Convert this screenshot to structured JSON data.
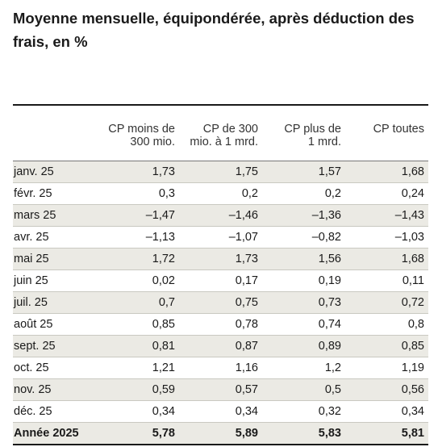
{
  "title": "Moyenne mensuelle, équipondérée, après déduction des frais, en %",
  "table": {
    "headers": [
      "CP moins de\n300 mio.",
      "CP de 300\nmio. à 1 mrd.",
      "CP plus de\n1 mrd.",
      "CP toutes"
    ],
    "rows": [
      {
        "label": "janv. 25",
        "values": [
          "1,73",
          "1,75",
          "1,57",
          "1,68"
        ]
      },
      {
        "label": "févr. 25",
        "values": [
          "0,3",
          "0,2",
          "0,2",
          "0,24"
        ]
      },
      {
        "label": "mars 25",
        "values": [
          "–1,47",
          "–1,46",
          "–1,36",
          "–1,43"
        ]
      },
      {
        "label": "avr. 25",
        "values": [
          "–1,13",
          "–1,07",
          "–0,82",
          "–1,03"
        ]
      },
      {
        "label": "mai 25",
        "values": [
          "1,72",
          "1,73",
          "1,56",
          "1,68"
        ]
      },
      {
        "label": "juin 25",
        "values": [
          "0,02",
          "0,17",
          "0,19",
          "0,11"
        ]
      },
      {
        "label": "juil. 25",
        "values": [
          "0,7",
          "0,75",
          "0,73",
          "0,72"
        ]
      },
      {
        "label": "août 25",
        "values": [
          "0,85",
          "0,78",
          "0,74",
          "0,8"
        ]
      },
      {
        "label": "sept. 25",
        "values": [
          "0,81",
          "0,87",
          "0,89",
          "0,85"
        ]
      },
      {
        "label": "oct. 25",
        "values": [
          "1,21",
          "1,16",
          "1,2",
          "1,19"
        ]
      },
      {
        "label": "nov. 25",
        "values": [
          "0,59",
          "0,57",
          "0,5",
          "0,56"
        ]
      },
      {
        "label": "déc. 25",
        "values": [
          "0,34",
          "0,34",
          "0,32",
          "0,34"
        ]
      }
    ],
    "total": {
      "label": "Année 2025",
      "values": [
        "5,78",
        "5,89",
        "5,83",
        "5,81"
      ]
    }
  }
}
